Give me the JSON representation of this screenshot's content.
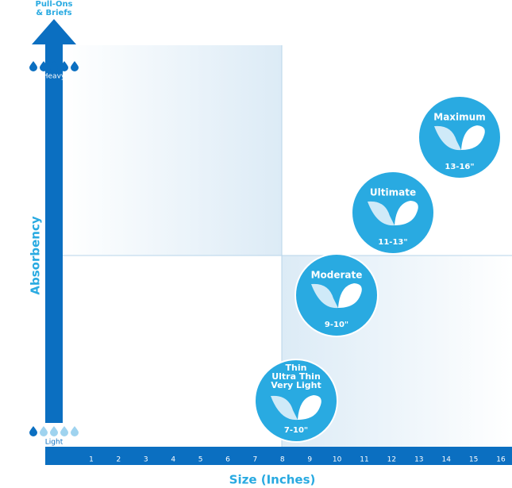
{
  "top_label": [
    "Pull-Ons",
    "& Briefs"
  ],
  "y_axis": {
    "title": "Absorbency",
    "high": "Heavy",
    "low": "Light"
  },
  "x_axis": {
    "title": "Size (Inches)",
    "ticks": [
      "1",
      "2",
      "3",
      "4",
      "5",
      "6",
      "7",
      "8",
      "9",
      "10",
      "11",
      "12",
      "13",
      "14",
      "15",
      "16"
    ]
  },
  "products": [
    {
      "name": [
        "Maximum"
      ],
      "size": "13-16\""
    },
    {
      "name": [
        "Ultimate"
      ],
      "size": "11-13\""
    },
    {
      "name": [
        "Moderate"
      ],
      "size": "9-10\""
    },
    {
      "name": [
        "Thin",
        "Ultra Thin",
        "Very Light"
      ],
      "size": "7-10\""
    }
  ]
}
